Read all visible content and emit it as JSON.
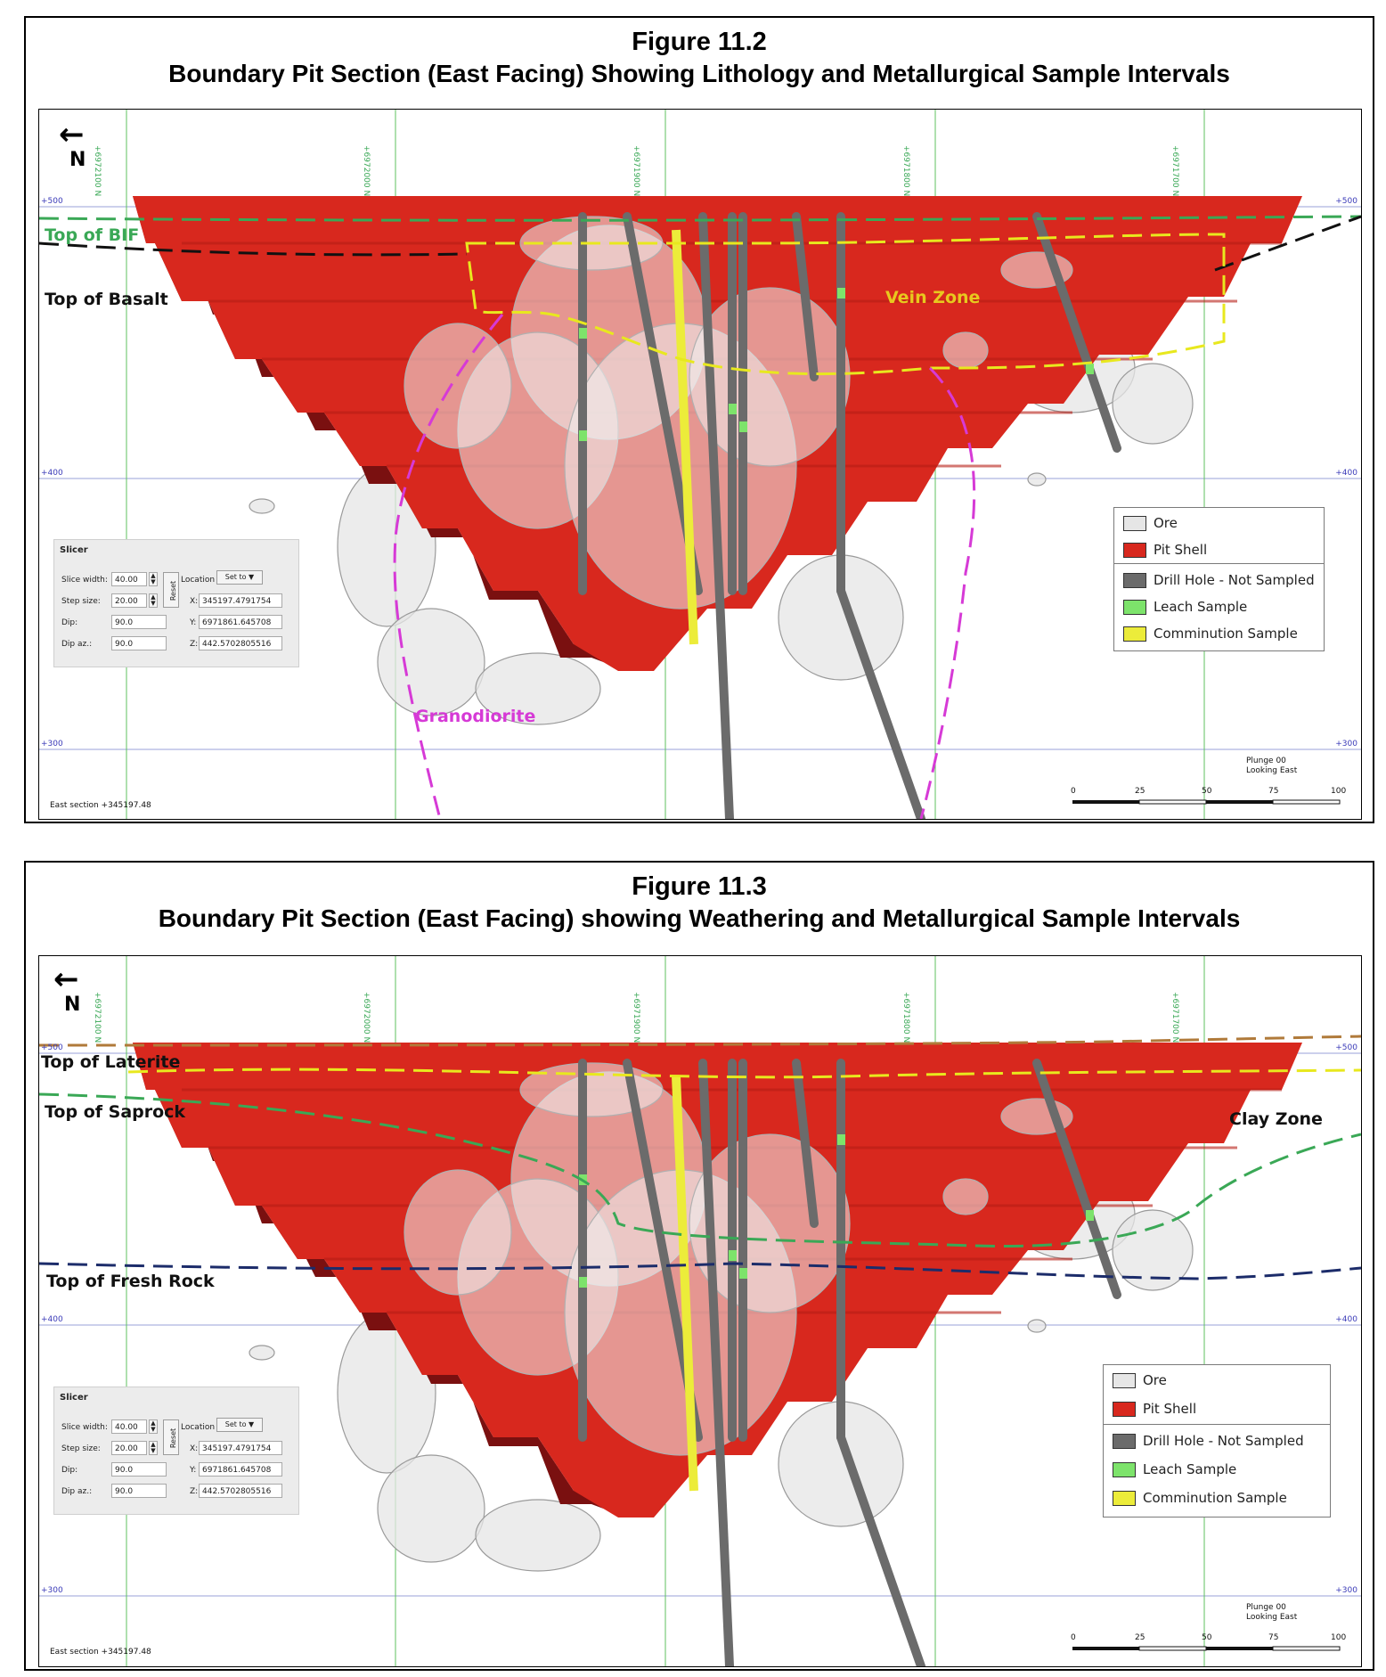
{
  "figures": [
    {
      "number": "Figure 11.2",
      "subtitle": "Boundary Pit Section (East Facing) Showing Lithology and Metallurgical Sample Intervals",
      "north_arrow": "N",
      "northing_ticks": [
        "+6972100 N",
        "+6972000 N",
        "+6971900 N",
        "+6971800 N",
        "+6971700 N"
      ],
      "elevation_ticks": [
        "+500",
        "+400",
        "+300"
      ],
      "labels": {
        "top1": "Top of BIF",
        "top2": "Top of Basalt",
        "zone": "Vein Zone",
        "rock": "Granodiorite"
      },
      "east_section": "East section +345197.48",
      "plunge": "Plunge 00",
      "looking": "Looking East",
      "scale": [
        "0",
        "25",
        "50",
        "75",
        "100"
      ],
      "slicer": {
        "title": "Slicer",
        "slice_width_label": "Slice width:",
        "slice_width": "40.00",
        "step_size_label": "Step size:",
        "step_size": "20.00",
        "dip_label": "Dip:",
        "dip": "90.0",
        "dip_az_label": "Dip az.:",
        "dip_az": "90.0",
        "reset": "Reset",
        "location_label": "Location",
        "set_to": "Set to ▼",
        "x_label": "X:",
        "x": "345197.4791754",
        "y_label": "Y:",
        "y": "6971861.645708",
        "z_label": "Z:",
        "z": "442.5702805516"
      },
      "legend": [
        "Ore",
        "Pit Shell",
        "Drill Hole - Not Sampled",
        "Leach Sample",
        "Comminution Sample"
      ]
    },
    {
      "number": "Figure 11.3",
      "subtitle": "Boundary Pit Section (East Facing) showing Weathering and Metallurgical Sample Intervals",
      "north_arrow": "N",
      "northing_ticks": [
        "+6972100 N",
        "+6972000 N",
        "+6971900 N",
        "+6971800 N",
        "+6971700 N"
      ],
      "elevation_ticks": [
        "+500",
        "+400",
        "+300"
      ],
      "labels": {
        "laterite": "Top of Laterite",
        "saprock": "Top of Saprock",
        "clay": "Clay Zone",
        "fresh": "Top of Fresh Rock"
      },
      "east_section": "East section +345197.48",
      "plunge": "Plunge 00",
      "looking": "Looking East",
      "scale": [
        "0",
        "25",
        "50",
        "75",
        "100"
      ],
      "slicer": {
        "title": "Slicer",
        "slice_width_label": "Slice width:",
        "slice_width": "40.00",
        "step_size_label": "Step size:",
        "step_size": "20.00",
        "dip_label": "Dip:",
        "dip": "90.0",
        "dip_az_label": "Dip az.:",
        "dip_az": "90.0",
        "reset": "Reset",
        "location_label": "Location",
        "set_to": "Set to ▼",
        "x_label": "X:",
        "x": "345197.4791754",
        "y_label": "Y:",
        "y": "6971861.645708",
        "z_label": "Z:",
        "z": "442.5702805516"
      },
      "legend": [
        "Ore",
        "Pit Shell",
        "Drill Hole - Not Sampled",
        "Leach Sample",
        "Comminution Sample"
      ]
    }
  ],
  "colors": {
    "pit_shell": "#d8281e",
    "pit_dark": "#7a1010",
    "ore": "#e6e6e6",
    "drill_hole": "#6b6b6b",
    "leach": "#7de36b",
    "comminution": "#ecec3a",
    "bif": "#3aa856",
    "basalt": "#111111",
    "vein": "#e8e81e",
    "granodiorite": "#d63ad6",
    "laterite": "#b07a3a",
    "saprock": "#3aa856",
    "fresh": "#1c2c6a",
    "gridline": "#5fc25f",
    "elev_line": "#9aa0d8"
  }
}
